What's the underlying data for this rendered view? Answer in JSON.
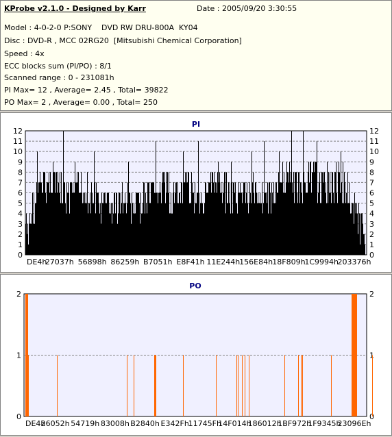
{
  "header": {
    "title": "KProbe v2.1.0 - Designed by Karr",
    "date": "Date : 2005/09/20 3:30:55",
    "lines": [
      "Model : 4-0-2-0 P:SONY    DVD RW DRU-800A  KY04",
      "Disc : DVD-R , MCC 02RG20  [Mitsubishi Chemical Corporation]",
      "Speed : 4x",
      "ECC blocks sum (PI/PO) : 8/1",
      "Scanned range : 0 - 231081h",
      "PI Max= 12 , Average= 2.45 , Total= 39822",
      "PO Max= 2 , Average= 0.00 , Total= 250"
    ]
  },
  "colors": {
    "pi_bars": "#000000",
    "po_bars": "#ff6600",
    "plot_bg": "#f0f0ff",
    "title_color": "#000080"
  },
  "chart_data": [
    {
      "type": "bar",
      "title": "PI",
      "ylim": [
        0,
        12
      ],
      "yticks": [
        0,
        1,
        2,
        3,
        4,
        5,
        6,
        7,
        8,
        9,
        10,
        11,
        12
      ],
      "xtick_labels": [
        "DE4h",
        "27037h",
        "56898h",
        "86259h",
        "B7051h",
        "E8F41h",
        "11E244h",
        "156E84h",
        "18F809h",
        "1C9994h",
        "203376h"
      ],
      "grid": "horizontal dashed",
      "envelope": [
        [
          0,
          5
        ],
        [
          4,
          3
        ],
        [
          10,
          6
        ],
        [
          20,
          8
        ],
        [
          40,
          9
        ],
        [
          60,
          7
        ],
        [
          80,
          8
        ],
        [
          100,
          7
        ],
        [
          120,
          6
        ],
        [
          140,
          7
        ],
        [
          160,
          6
        ],
        [
          180,
          7
        ],
        [
          200,
          8
        ],
        [
          220,
          7
        ],
        [
          240,
          8
        ],
        [
          260,
          7
        ],
        [
          280,
          9
        ],
        [
          300,
          7
        ],
        [
          320,
          7
        ],
        [
          340,
          8
        ],
        [
          360,
          7
        ],
        [
          380,
          9
        ],
        [
          400,
          8
        ],
        [
          420,
          9
        ],
        [
          440,
          8
        ],
        [
          460,
          9
        ],
        [
          470,
          8
        ],
        [
          480,
          6
        ],
        [
          490,
          4
        ],
        [
          500,
          2
        ],
        [
          507,
          1
        ]
      ],
      "spikes": [
        [
          17,
          10
        ],
        [
          55,
          12
        ],
        [
          72,
          9
        ],
        [
          100,
          10
        ],
        [
          150,
          9
        ],
        [
          190,
          11
        ],
        [
          230,
          10
        ],
        [
          252,
          11
        ],
        [
          300,
          9
        ],
        [
          330,
          10
        ],
        [
          348,
          11
        ],
        [
          370,
          10
        ],
        [
          388,
          12
        ],
        [
          405,
          12
        ],
        [
          425,
          11
        ],
        [
          440,
          9
        ],
        [
          460,
          10
        ]
      ]
    },
    {
      "type": "bar",
      "title": "PO",
      "ylim": [
        0,
        2
      ],
      "yticks": [
        0,
        1,
        2
      ],
      "xtick_labels": [
        "DE4h",
        "26052h",
        "54719h",
        "83008h",
        "B2840h",
        "E342Fh",
        "11745Fh",
        "14F014h",
        "186012h",
        "1BF972h",
        "1F9345h",
        "23096Eh"
      ],
      "grid": "horizontal dashed",
      "bars_pos": [
        2,
        4,
        6,
        48,
        150,
        160,
        190,
        191,
        192,
        232,
        280,
        310,
        312,
        318,
        322,
        328,
        380,
        400,
        404,
        406,
        448,
        478,
        480,
        482,
        484,
        508
      ],
      "bars_val": [
        2,
        2,
        1,
        1,
        1,
        1,
        1,
        1,
        1,
        1,
        1,
        1,
        1,
        1,
        1,
        1,
        1,
        1,
        1,
        1,
        1,
        2,
        2,
        2,
        2,
        1
      ]
    }
  ]
}
